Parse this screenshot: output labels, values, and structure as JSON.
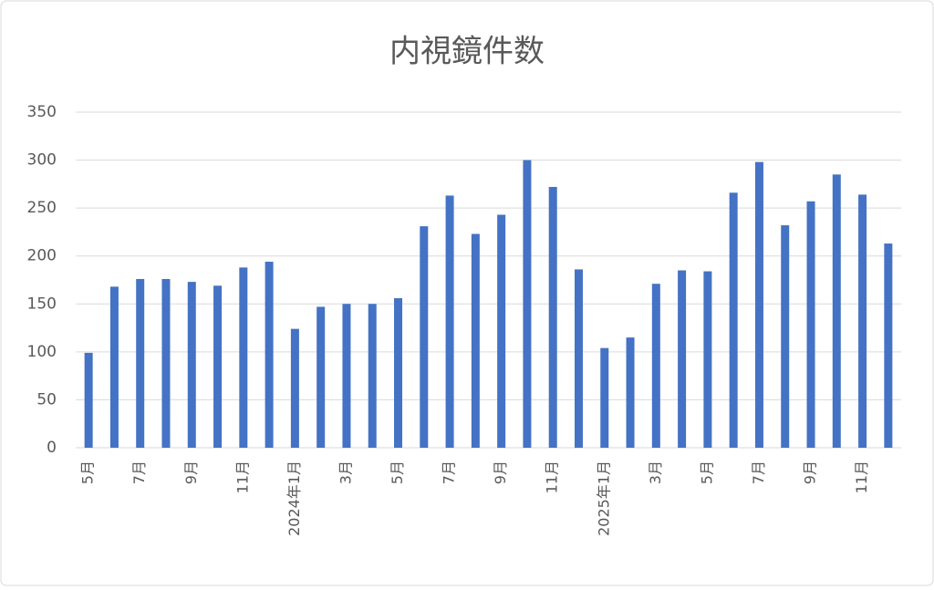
{
  "chart_data": {
    "type": "bar",
    "title": "内視鏡件数",
    "categories": [
      "5月",
      null,
      "7月",
      null,
      "9月",
      null,
      "11月",
      null,
      "2024年1月",
      null,
      "3月",
      null,
      "5月",
      null,
      "7月",
      null,
      "9月",
      null,
      "11月",
      null,
      "2025年1月",
      null,
      "3月",
      null,
      "5月",
      null,
      "7月",
      null,
      "9月",
      null,
      "11月",
      null
    ],
    "values": [
      99,
      168,
      176,
      176,
      173,
      169,
      188,
      194,
      124,
      147,
      150,
      150,
      156,
      231,
      263,
      223,
      243,
      300,
      272,
      186,
      104,
      115,
      171,
      185,
      184,
      266,
      298,
      232,
      257,
      285,
      264,
      213
    ],
    "color": "#4472c4",
    "ylim": [
      0,
      350
    ],
    "yticks": [
      0,
      50,
      100,
      150,
      200,
      250,
      300,
      350
    ],
    "grid": true
  }
}
